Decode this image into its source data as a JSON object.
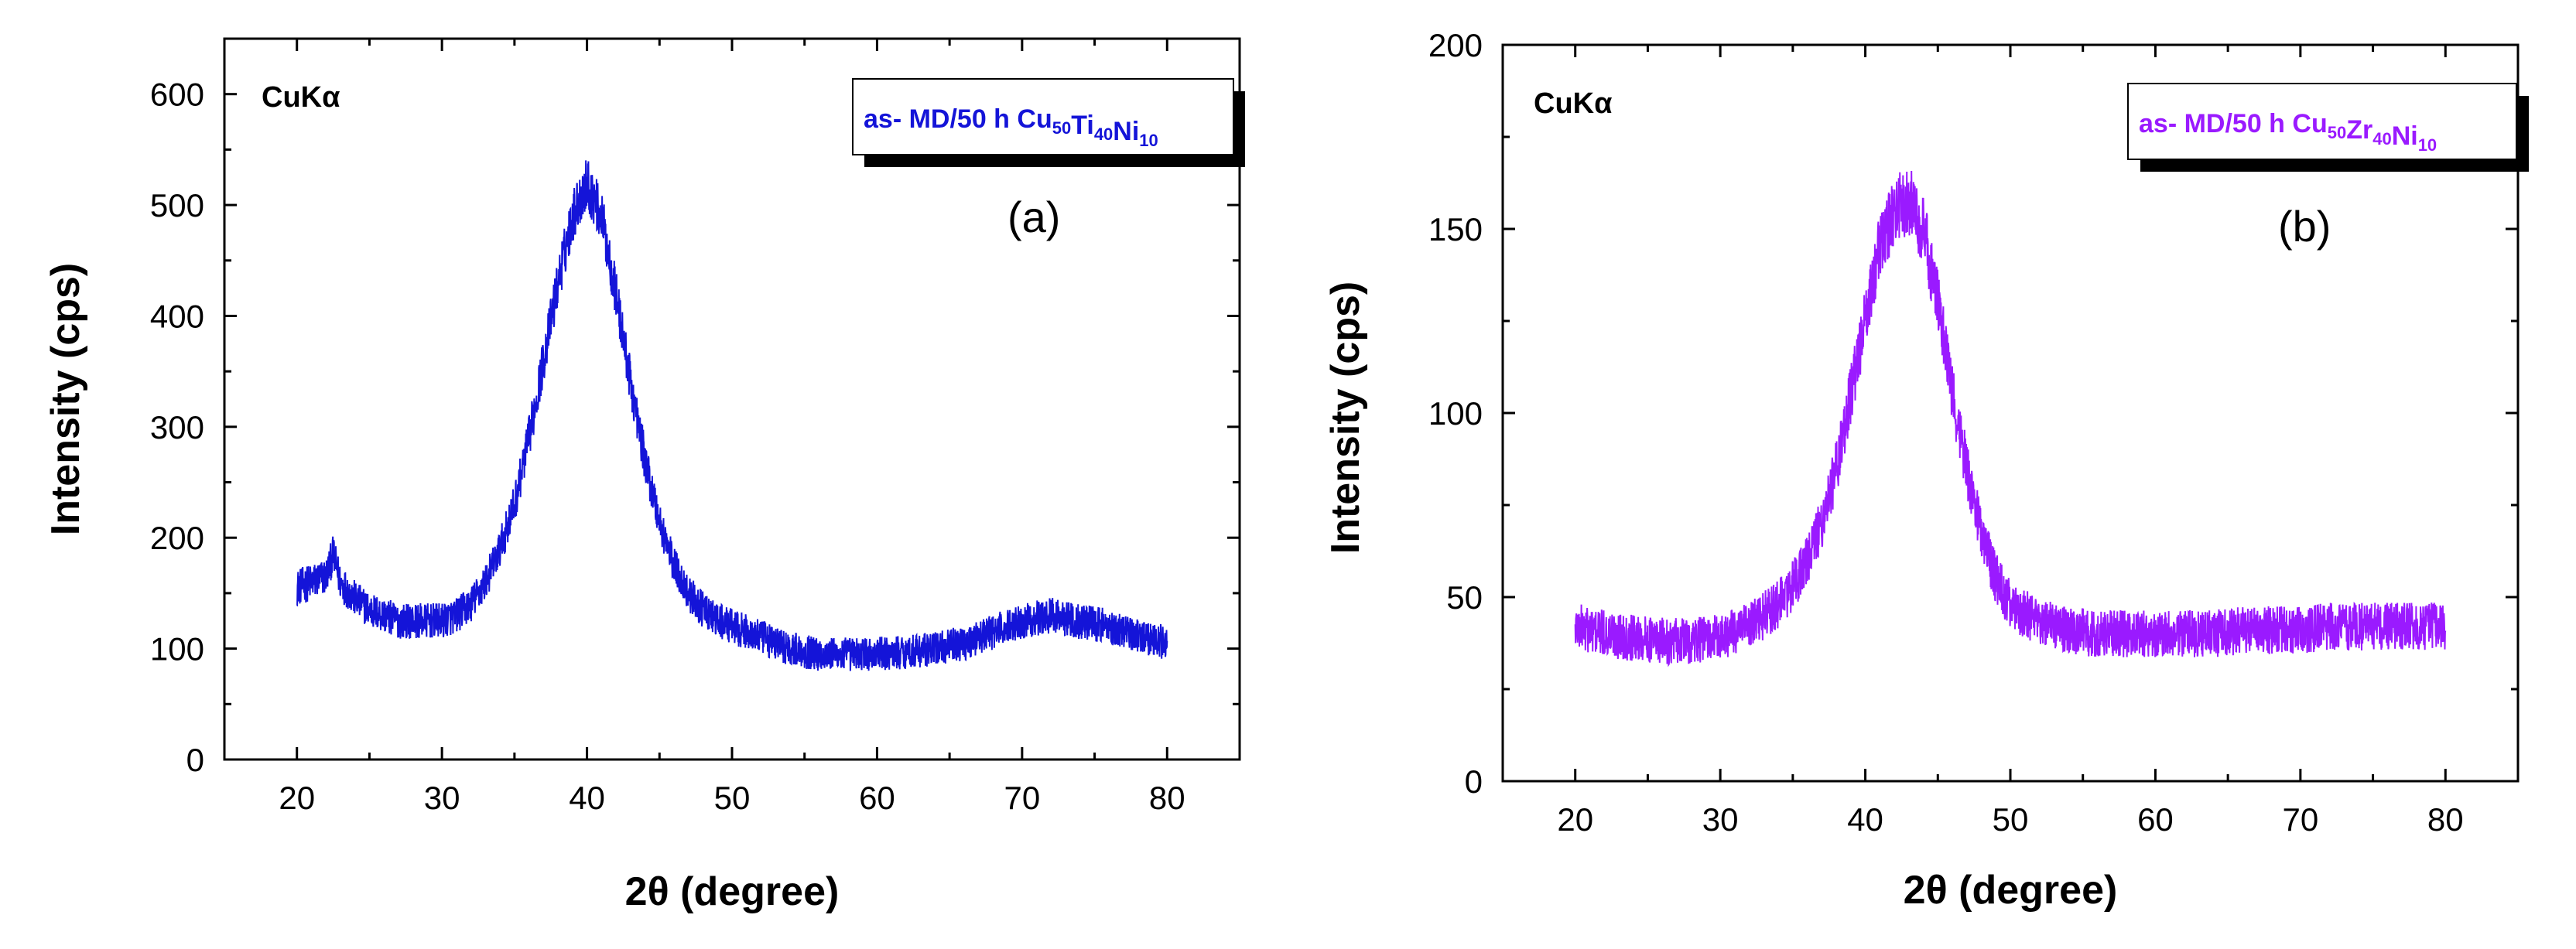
{
  "chart_data": [
    {
      "type": "line",
      "panel_label": "(a)",
      "radiation_label": "CuKα",
      "xlabel": "2θ (degree)",
      "ylabel": "Intensity (cps)",
      "xlim": [
        15,
        85
      ],
      "ylim": [
        0,
        650
      ],
      "xticks": [
        20,
        30,
        40,
        50,
        60,
        70,
        80
      ],
      "yticks": [
        0,
        100,
        200,
        300,
        400,
        500,
        600
      ],
      "color": "#1414d8",
      "legend": {
        "prefix": "as- MD/50 h ",
        "parts": [
          {
            "text": "Cu",
            "sub": "50"
          },
          {
            "text": "Ti",
            "sub": "40"
          },
          {
            "text": "Ni",
            "sub": "10"
          }
        ]
      },
      "series": [
        {
          "name": "as- MD/50 h Cu50Ti40Ni10",
          "x": [
            20,
            21,
            22,
            22.5,
            23,
            24,
            25,
            26,
            27,
            28,
            29,
            30,
            31,
            32,
            33,
            34,
            35,
            36,
            37,
            38,
            39,
            40,
            41,
            42,
            43,
            44,
            45,
            46,
            47,
            48,
            49,
            50,
            52,
            54,
            56,
            58,
            60,
            62,
            64,
            66,
            68,
            70,
            72,
            74,
            76,
            78,
            80
          ],
          "y": [
            155,
            160,
            165,
            185,
            160,
            145,
            135,
            130,
            125,
            125,
            125,
            125,
            130,
            140,
            160,
            190,
            230,
            290,
            360,
            430,
            490,
            520,
            490,
            420,
            340,
            270,
            215,
            175,
            150,
            135,
            125,
            120,
            110,
            100,
            95,
            95,
            95,
            97,
            100,
            105,
            115,
            125,
            130,
            125,
            120,
            112,
            105
          ],
          "noise": 45
        }
      ]
    },
    {
      "type": "line",
      "panel_label": "(b)",
      "radiation_label": "CuKα",
      "xlabel": "2θ (degree)",
      "ylabel": "Intensity (cps)",
      "xlim": [
        15,
        85
      ],
      "ylim": [
        0,
        200
      ],
      "xticks": [
        20,
        30,
        40,
        50,
        60,
        70,
        80
      ],
      "yticks": [
        0,
        50,
        100,
        150,
        200
      ],
      "color": "#9a1aff",
      "legend": {
        "prefix": "as- MD/50 h ",
        "parts": [
          {
            "text": "Cu",
            "sub": "50"
          },
          {
            "text": "Zr",
            "sub": "40"
          },
          {
            "text": "Ni",
            "sub": "10"
          }
        ]
      },
      "series": [
        {
          "name": "as- MD/50 h Cu50Zr40Ni10",
          "x": [
            20,
            22,
            24,
            26,
            28,
            30,
            32,
            34,
            35,
            36,
            37,
            38,
            39,
            40,
            41,
            42,
            43,
            44,
            45,
            46,
            47,
            48,
            49,
            50,
            52,
            54,
            56,
            58,
            60,
            62,
            64,
            66,
            68,
            70,
            72,
            74,
            76,
            78,
            80
          ],
          "y": [
            42,
            40,
            39,
            38,
            38,
            39,
            42,
            48,
            53,
            60,
            70,
            85,
            105,
            125,
            145,
            155,
            158,
            150,
            130,
            105,
            85,
            68,
            55,
            48,
            43,
            41,
            40,
            40,
            40,
            40,
            40,
            41,
            41,
            41,
            42,
            42,
            42,
            42,
            42
          ],
          "noise": 18
        }
      ]
    }
  ]
}
